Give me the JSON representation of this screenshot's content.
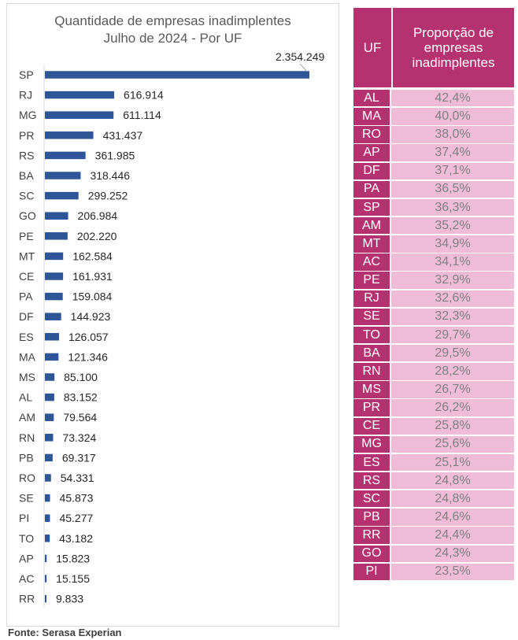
{
  "chart_data": [
    {
      "type": "bar",
      "orientation": "horizontal",
      "title": "Quantidade de empresas inadimplentes",
      "subtitle": "Julho de 2024 - Por UF",
      "categories": [
        "SP",
        "RJ",
        "MG",
        "PR",
        "RS",
        "BA",
        "SC",
        "GO",
        "PE",
        "MT",
        "CE",
        "PA",
        "DF",
        "ES",
        "MA",
        "MS",
        "AL",
        "AM",
        "RN",
        "PB",
        "RO",
        "SE",
        "PI",
        "TO",
        "AP",
        "AC",
        "RR"
      ],
      "values": [
        2354249,
        616914,
        611114,
        431437,
        361985,
        318446,
        299252,
        206984,
        202220,
        162584,
        161931,
        159084,
        144923,
        126057,
        121346,
        85100,
        83152,
        79564,
        73324,
        69317,
        54331,
        45873,
        45277,
        43182,
        15823,
        15155,
        9833
      ],
      "value_labels": [
        "2.354.249",
        "616.914",
        "611.114",
        "431.437",
        "361.985",
        "318.446",
        "299.252",
        "206.984",
        "202.220",
        "162.584",
        "161.931",
        "159.084",
        "144.923",
        "126.057",
        "121.346",
        "85.100",
        "83.152",
        "79.564",
        "73.324",
        "69.317",
        "54.331",
        "45.873",
        "45.277",
        "43.182",
        "15.823",
        "15.155",
        "9.833"
      ],
      "bar_color": "#2e5597",
      "grid": false
    },
    {
      "type": "table",
      "columns": [
        "UF",
        "Proporção de empresas inadimplentes"
      ],
      "rows": [
        [
          "AL",
          "42,4%"
        ],
        [
          "MA",
          "40,0%"
        ],
        [
          "RO",
          "38,0%"
        ],
        [
          "AP",
          "37,4%"
        ],
        [
          "DF",
          "37,1%"
        ],
        [
          "PA",
          "36,5%"
        ],
        [
          "SP",
          "36,3%"
        ],
        [
          "AM",
          "35,2%"
        ],
        [
          "MT",
          "34,9%"
        ],
        [
          "AC",
          "34,1%"
        ],
        [
          "PE",
          "32,9%"
        ],
        [
          "RJ",
          "32,6%"
        ],
        [
          "SE",
          "32,3%"
        ],
        [
          "TO",
          "29,7%"
        ],
        [
          "BA",
          "29,5%"
        ],
        [
          "RN",
          "28,2%"
        ],
        [
          "MS",
          "26,7%"
        ],
        [
          "PR",
          "26,2%"
        ],
        [
          "CE",
          "25,8%"
        ],
        [
          "MG",
          "25,6%"
        ],
        [
          "ES",
          "25,1%"
        ],
        [
          "RS",
          "24,8%"
        ],
        [
          "SC",
          "24,8%"
        ],
        [
          "PB",
          "24,6%"
        ],
        [
          "RR",
          "24,4%"
        ],
        [
          "GO",
          "24,3%"
        ],
        [
          "PI",
          "23,5%"
        ]
      ],
      "header_color": "#b3326f",
      "cell_color": "#efbcd8"
    }
  ],
  "source": "Fonte: Serasa Experian"
}
